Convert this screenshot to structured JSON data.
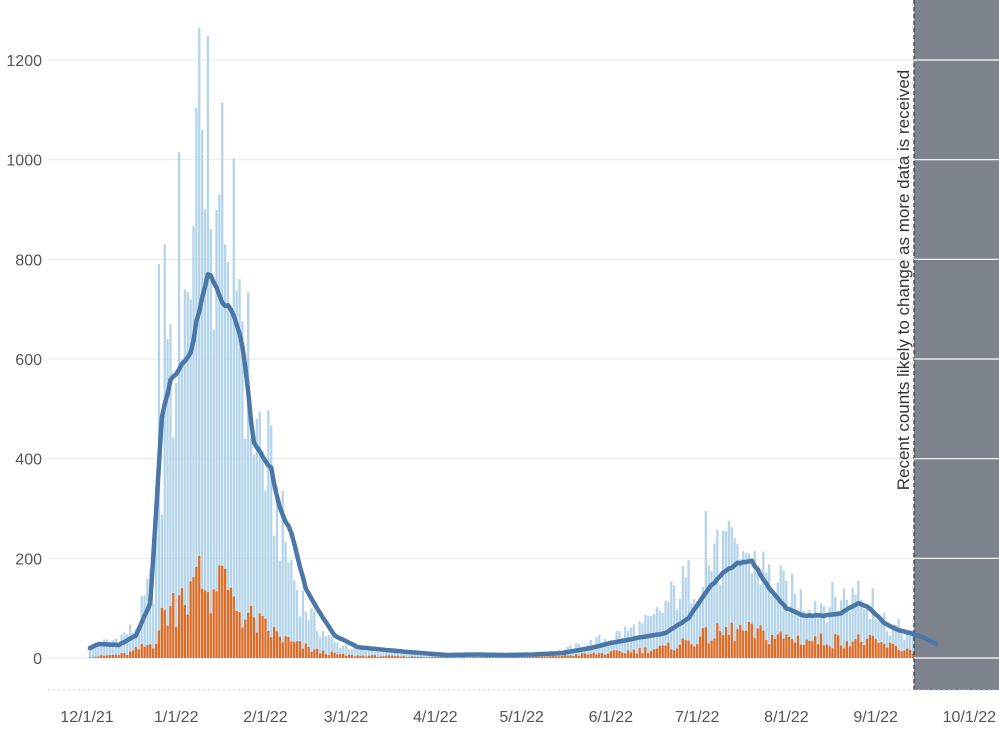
{
  "chart_data": {
    "type": "bar",
    "title": "",
    "xlabel": "",
    "ylabel": "",
    "ylim": [
      0,
      1260
    ],
    "yticks": [
      "0",
      "200",
      "400",
      "600",
      "800",
      "1000",
      "1200"
    ],
    "xticks": [
      "12/1/21",
      "1/1/22",
      "2/1/22",
      "3/1/22",
      "4/1/22",
      "5/1/22",
      "6/1/22",
      "7/1/22",
      "8/1/22",
      "9/1/22",
      "10/1/22"
    ],
    "grid": true,
    "legend": "none",
    "annotation": "Recent counts likely to change as more data is received",
    "shaded_region": {
      "start": "9/1/22 + 2 days",
      "end": "10/1/22"
    },
    "series": [
      {
        "kind": "bar",
        "color": "#b3d4ea",
        "keyframes": [
          [
            "2021-12-02",
            22
          ],
          [
            "2021-12-10",
            35
          ],
          [
            "2021-12-18",
            60
          ],
          [
            "2021-12-24",
            160
          ],
          [
            "2021-12-28",
            420
          ],
          [
            "2022-01-01",
            620
          ],
          [
            "2022-01-05",
            700
          ],
          [
            "2022-01-09",
            880
          ],
          [
            "2022-01-12",
            1000
          ],
          [
            "2022-01-15",
            900
          ],
          [
            "2022-01-18",
            860
          ],
          [
            "2022-01-21",
            780
          ],
          [
            "2022-01-24",
            680
          ],
          [
            "2022-01-28",
            460
          ],
          [
            "2022-02-02",
            380
          ],
          [
            "2022-02-07",
            250
          ],
          [
            "2022-02-12",
            140
          ],
          [
            "2022-02-18",
            70
          ],
          [
            "2022-02-25",
            30
          ],
          [
            "2022-03-05",
            18
          ],
          [
            "2022-03-20",
            12
          ],
          [
            "2022-04-05",
            8
          ],
          [
            "2022-04-20",
            8
          ],
          [
            "2022-05-05",
            9
          ],
          [
            "2022-05-15",
            15
          ],
          [
            "2022-05-25",
            30
          ],
          [
            "2022-06-05",
            50
          ],
          [
            "2022-06-15",
            70
          ],
          [
            "2022-06-25",
            140
          ],
          [
            "2022-07-05",
            180
          ],
          [
            "2022-07-12",
            220
          ],
          [
            "2022-07-20",
            210
          ],
          [
            "2022-07-27",
            150
          ],
          [
            "2022-08-05",
            120
          ],
          [
            "2022-08-15",
            110
          ],
          [
            "2022-08-22",
            125
          ],
          [
            "2022-08-29",
            110
          ],
          [
            "2022-09-05",
            70
          ],
          [
            "2022-09-15",
            40
          ],
          [
            "2022-09-25",
            15
          ]
        ],
        "spikes": [
          [
            "2021-12-26",
            790
          ],
          [
            "2021-12-28",
            830
          ],
          [
            "2021-12-29",
            640
          ],
          [
            "2022-01-02",
            1015
          ],
          [
            "2022-01-04",
            740
          ],
          [
            "2022-01-06",
            720
          ],
          [
            "2022-01-09",
            1265
          ],
          [
            "2022-01-10",
            1060
          ],
          [
            "2022-01-11",
            900
          ],
          [
            "2022-01-13",
            860
          ],
          [
            "2022-01-16",
            930
          ],
          [
            "2022-01-17",
            1115
          ],
          [
            "2022-01-18",
            830
          ],
          [
            "2022-01-20",
            700
          ],
          [
            "2022-01-23",
            760
          ],
          [
            "2022-01-30",
            495
          ],
          [
            "2022-07-04",
            295
          ],
          [
            "2022-07-07",
            230
          ],
          [
            "2022-07-12",
            275
          ],
          [
            "2022-07-14",
            240
          ],
          [
            "2022-07-19",
            210
          ],
          [
            "2022-08-26",
            155
          ],
          [
            "2022-08-31",
            140
          ]
        ]
      },
      {
        "kind": "bar",
        "color": "#de6b26",
        "keyframes": [
          [
            "2021-12-02",
            2
          ],
          [
            "2021-12-15",
            8
          ],
          [
            "2021-12-24",
            30
          ],
          [
            "2021-12-28",
            90
          ],
          [
            "2022-01-01",
            110
          ],
          [
            "2022-01-05",
            120
          ],
          [
            "2022-01-09",
            150
          ],
          [
            "2022-01-13",
            140
          ],
          [
            "2022-01-17",
            130
          ],
          [
            "2022-01-21",
            110
          ],
          [
            "2022-01-26",
            80
          ],
          [
            "2022-02-02",
            55
          ],
          [
            "2022-02-10",
            30
          ],
          [
            "2022-02-20",
            12
          ],
          [
            "2022-03-01",
            5
          ],
          [
            "2022-04-01",
            2
          ],
          [
            "2022-05-10",
            3
          ],
          [
            "2022-06-01",
            10
          ],
          [
            "2022-06-20",
            20
          ],
          [
            "2022-07-05",
            45
          ],
          [
            "2022-07-15",
            55
          ],
          [
            "2022-07-25",
            45
          ],
          [
            "2022-08-10",
            35
          ],
          [
            "2022-08-28",
            35
          ],
          [
            "2022-09-10",
            18
          ],
          [
            "2022-09-25",
            5
          ]
        ],
        "spikes": [
          [
            "2022-01-09",
            205
          ],
          [
            "2022-01-17",
            185
          ],
          [
            "2022-01-03",
            140
          ]
        ]
      },
      {
        "kind": "line",
        "color": "#4a77a8",
        "keyframes": [
          [
            "2021-12-02",
            20
          ],
          [
            "2021-12-05",
            28
          ],
          [
            "2021-12-12",
            26
          ],
          [
            "2021-12-18",
            45
          ],
          [
            "2021-12-23",
            110
          ],
          [
            "2021-12-27",
            480
          ],
          [
            "2021-12-30",
            560
          ],
          [
            "2022-01-03",
            590
          ],
          [
            "2022-01-06",
            610
          ],
          [
            "2022-01-09",
            700
          ],
          [
            "2022-01-12",
            770
          ],
          [
            "2022-01-14",
            760
          ],
          [
            "2022-01-17",
            720
          ],
          [
            "2022-01-20",
            700
          ],
          [
            "2022-01-24",
            630
          ],
          [
            "2022-01-28",
            430
          ],
          [
            "2022-02-03",
            380
          ],
          [
            "2022-02-06",
            300
          ],
          [
            "2022-02-10",
            250
          ],
          [
            "2022-02-15",
            140
          ],
          [
            "2022-02-20",
            90
          ],
          [
            "2022-02-25",
            45
          ],
          [
            "2022-03-05",
            22
          ],
          [
            "2022-03-15",
            16
          ],
          [
            "2022-03-25",
            11
          ],
          [
            "2022-04-05",
            6
          ],
          [
            "2022-04-15",
            7
          ],
          [
            "2022-04-25",
            6
          ],
          [
            "2022-05-05",
            7
          ],
          [
            "2022-05-15",
            10
          ],
          [
            "2022-05-25",
            20
          ],
          [
            "2022-06-01",
            30
          ],
          [
            "2022-06-10",
            40
          ],
          [
            "2022-06-20",
            50
          ],
          [
            "2022-06-28",
            80
          ],
          [
            "2022-07-05",
            140
          ],
          [
            "2022-07-10",
            170
          ],
          [
            "2022-07-15",
            190
          ],
          [
            "2022-07-20",
            195
          ],
          [
            "2022-07-26",
            140
          ],
          [
            "2022-08-01",
            100
          ],
          [
            "2022-08-07",
            85
          ],
          [
            "2022-08-14",
            85
          ],
          [
            "2022-08-20",
            90
          ],
          [
            "2022-08-26",
            110
          ],
          [
            "2022-08-30",
            100
          ],
          [
            "2022-09-04",
            70
          ],
          [
            "2022-09-08",
            58
          ],
          [
            "2022-09-13",
            50
          ],
          [
            "2022-09-18",
            40
          ],
          [
            "2022-09-22",
            28
          ]
        ]
      }
    ]
  }
}
